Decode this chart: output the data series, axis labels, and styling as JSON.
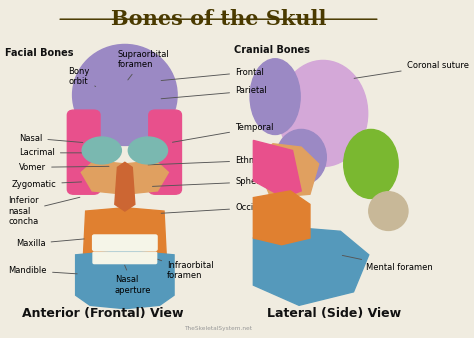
{
  "title": "Bones of the Skull",
  "background_color": "#f0ece0",
  "title_color": "#4a3a00",
  "title_fontsize": 15,
  "subtitle_left": "Anterior (Frontal) View",
  "subtitle_right": "Lateral (Side) View",
  "subtitle_fontsize": 9,
  "facial_bones_label": "Facial Bones",
  "cranial_bones_label": "Cranial Bones",
  "watermark": "TheSkeletalSystem.net",
  "colors": {
    "frontal_bone": "#9b89c4",
    "parietal_bone": "#d4a8d8",
    "sphenoid": "#e0a060",
    "ethmoid": "#7ab8b0",
    "face_pink": "#e8508c",
    "maxilla": "#e08030",
    "mandible": "#5599bb",
    "lateral_green": "#7ab830",
    "lateral_tan": "#c8b898",
    "teeth": "#f5f5e8",
    "nasal_center": "#cc6633"
  }
}
